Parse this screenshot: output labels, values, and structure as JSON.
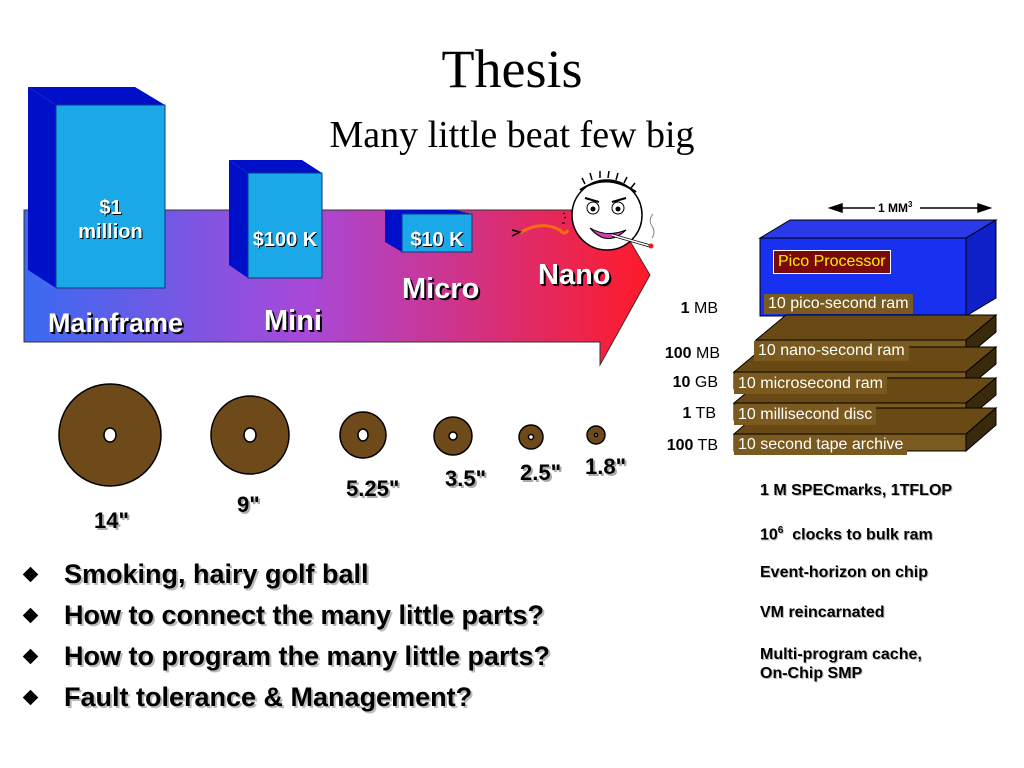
{
  "title": "Thesis",
  "subtitle": "Many little beat few big",
  "arrow": {
    "mainframe_label": "Mainframe",
    "mini_label": "Mini",
    "micro_label": "Micro",
    "nano_label": "Nano",
    "mainframe_price": "$1\nmillion",
    "mini_price": "$100 K",
    "micro_price": "$10 K"
  },
  "disks": [
    {
      "label": "14\""
    },
    {
      "label": "9\""
    },
    {
      "label": "5.25\""
    },
    {
      "label": "3.5\""
    },
    {
      "label": "2.5\""
    },
    {
      "label": "1.8\""
    }
  ],
  "chip": {
    "dimension_label": "1 MM",
    "dimension_exp": "3",
    "processor_label": "Pico Processor",
    "layers": [
      {
        "amount": "1",
        "unit": "MB",
        "label": "10 pico-second ram"
      },
      {
        "amount": "100",
        "unit": "MB",
        "label": "10 nano-second ram"
      },
      {
        "amount": "10",
        "unit": "GB",
        "label": "10 microsecond ram"
      },
      {
        "amount": "1",
        "unit": "TB",
        "label": "10 millisecond disc"
      },
      {
        "amount": "100",
        "unit": "TB",
        "label": "10 second tape archive"
      }
    ]
  },
  "notes": {
    "n1": "1 M SPECmarks, 1TFLOP",
    "n2_base": "10",
    "n2_exp": "6",
    "n2_rest": "  clocks to bulk ram",
    "n3": "Event-horizon on chip",
    "n4": "VM reincarnated",
    "n5a": "Multi-program cache,",
    "n5b": "On-Chip SMP"
  },
  "bullets": [
    "Smoking, hairy golf ball",
    "How to connect the many little parts?",
    "How to program the many little parts?",
    "Fault tolerance & Management?"
  ],
  "colors": {
    "arrow_left": "#3a5ef0",
    "arrow_mid": "#b040d0",
    "arrow_right": "#ff1a2a",
    "box_front": "#1aa8e8",
    "box_side": "#0010c8",
    "disk": "#6e4a1a",
    "layer": "#7a5a1e",
    "chip_blue": "#1020e0"
  }
}
